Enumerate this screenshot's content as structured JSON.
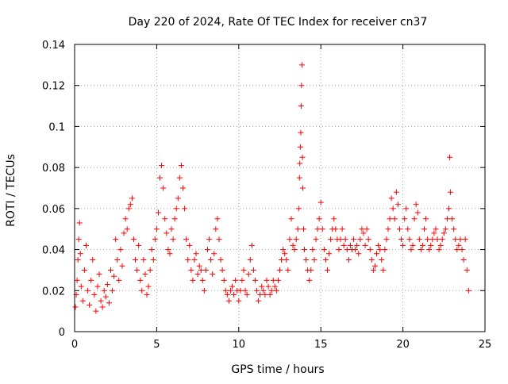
{
  "chart_data": {
    "type": "scatter",
    "title": "Day 220 of 2024, Rate Of TEC Index for receiver cn37",
    "xlabel": "GPS time / hours",
    "ylabel": "ROTI / TECUs",
    "xlim": [
      0,
      25
    ],
    "ylim": [
      0,
      0.14
    ],
    "xticks": [
      0,
      5,
      10,
      15,
      20,
      25
    ],
    "xtick_labels": [
      "0",
      "5",
      "10",
      "15",
      "20",
      "25"
    ],
    "yticks": [
      0,
      0.02,
      0.04,
      0.06,
      0.08,
      0.1,
      0.12,
      0.14
    ],
    "ytick_labels": [
      "0",
      "0.02",
      "0.04",
      "0.06",
      "0.08",
      "0.1",
      "0.12",
      "0.14"
    ],
    "grid": true,
    "legend": "none",
    "marker": "plus",
    "color": "#ff0000",
    "series": [
      {
        "values_note_free": true,
        "points": [
          [
            0.05,
            0.012
          ],
          [
            0.1,
            0.018
          ],
          [
            0.15,
            0.025
          ],
          [
            0.2,
            0.035
          ],
          [
            0.25,
            0.045
          ],
          [
            0.3,
            0.053
          ],
          [
            0.35,
            0.038
          ],
          [
            0.4,
            0.022
          ],
          [
            0.5,
            0.015
          ],
          [
            0.6,
            0.03
          ],
          [
            0.7,
            0.042
          ],
          [
            0.8,
            0.02
          ],
          [
            0.9,
            0.013
          ],
          [
            1.0,
            0.025
          ],
          [
            1.1,
            0.035
          ],
          [
            1.2,
            0.018
          ],
          [
            1.3,
            0.01
          ],
          [
            1.4,
            0.022
          ],
          [
            1.5,
            0.028
          ],
          [
            1.6,
            0.015
          ],
          [
            1.7,
            0.012
          ],
          [
            1.8,
            0.02
          ],
          [
            1.9,
            0.017
          ],
          [
            2.0,
            0.023
          ],
          [
            2.1,
            0.014
          ],
          [
            2.2,
            0.03
          ],
          [
            2.3,
            0.02
          ],
          [
            2.4,
            0.027
          ],
          [
            2.5,
            0.045
          ],
          [
            2.6,
            0.035
          ],
          [
            2.7,
            0.025
          ],
          [
            2.8,
            0.04
          ],
          [
            2.9,
            0.032
          ],
          [
            3.0,
            0.048
          ],
          [
            3.1,
            0.055
          ],
          [
            3.2,
            0.05
          ],
          [
            3.3,
            0.06
          ],
          [
            3.4,
            0.062
          ],
          [
            3.5,
            0.065
          ],
          [
            3.6,
            0.045
          ],
          [
            3.7,
            0.035
          ],
          [
            3.8,
            0.03
          ],
          [
            3.9,
            0.042
          ],
          [
            4.0,
            0.025
          ],
          [
            4.1,
            0.02
          ],
          [
            4.2,
            0.035
          ],
          [
            4.3,
            0.028
          ],
          [
            4.4,
            0.018
          ],
          [
            4.5,
            0.022
          ],
          [
            4.6,
            0.03
          ],
          [
            4.7,
            0.04
          ],
          [
            4.8,
            0.035
          ],
          [
            4.9,
            0.045
          ],
          [
            5.0,
            0.05
          ],
          [
            5.1,
            0.058
          ],
          [
            5.2,
            0.075
          ],
          [
            5.3,
            0.081
          ],
          [
            5.4,
            0.07
          ],
          [
            5.5,
            0.055
          ],
          [
            5.6,
            0.048
          ],
          [
            5.7,
            0.04
          ],
          [
            5.8,
            0.038
          ],
          [
            5.9,
            0.05
          ],
          [
            6.0,
            0.045
          ],
          [
            6.1,
            0.055
          ],
          [
            6.2,
            0.06
          ],
          [
            6.3,
            0.065
          ],
          [
            6.4,
            0.075
          ],
          [
            6.5,
            0.081
          ],
          [
            6.6,
            0.07
          ],
          [
            6.7,
            0.06
          ],
          [
            6.8,
            0.045
          ],
          [
            6.9,
            0.035
          ],
          [
            7.0,
            0.042
          ],
          [
            7.1,
            0.03
          ],
          [
            7.2,
            0.025
          ],
          [
            7.3,
            0.035
          ],
          [
            7.4,
            0.038
          ],
          [
            7.5,
            0.028
          ],
          [
            7.6,
            0.032
          ],
          [
            7.7,
            0.03
          ],
          [
            7.8,
            0.025
          ],
          [
            7.9,
            0.02
          ],
          [
            8.0,
            0.03
          ],
          [
            8.1,
            0.04
          ],
          [
            8.2,
            0.045
          ],
          [
            8.3,
            0.035
          ],
          [
            8.4,
            0.028
          ],
          [
            8.5,
            0.038
          ],
          [
            8.6,
            0.05
          ],
          [
            8.7,
            0.055
          ],
          [
            8.8,
            0.045
          ],
          [
            8.9,
            0.035
          ],
          [
            9.0,
            0.03
          ],
          [
            9.1,
            0.025
          ],
          [
            9.2,
            0.02
          ],
          [
            9.3,
            0.018
          ],
          [
            9.4,
            0.015
          ],
          [
            9.5,
            0.02
          ],
          [
            9.6,
            0.022
          ],
          [
            9.7,
            0.018
          ],
          [
            9.8,
            0.025
          ],
          [
            9.9,
            0.02
          ],
          [
            10.0,
            0.015
          ],
          [
            10.1,
            0.02
          ],
          [
            10.2,
            0.025
          ],
          [
            10.3,
            0.03
          ],
          [
            10.4,
            0.02
          ],
          [
            10.5,
            0.018
          ],
          [
            10.6,
            0.028
          ],
          [
            10.7,
            0.035
          ],
          [
            10.8,
            0.042
          ],
          [
            10.9,
            0.03
          ],
          [
            11.0,
            0.025
          ],
          [
            11.1,
            0.02
          ],
          [
            11.2,
            0.015
          ],
          [
            11.3,
            0.018
          ],
          [
            11.4,
            0.022
          ],
          [
            11.5,
            0.02
          ],
          [
            11.6,
            0.018
          ],
          [
            11.7,
            0.025
          ],
          [
            11.8,
            0.022
          ],
          [
            11.9,
            0.018
          ],
          [
            12.0,
            0.02
          ],
          [
            12.1,
            0.025
          ],
          [
            12.2,
            0.022
          ],
          [
            12.3,
            0.02
          ],
          [
            12.4,
            0.025
          ],
          [
            12.5,
            0.03
          ],
          [
            12.6,
            0.035
          ],
          [
            12.7,
            0.04
          ],
          [
            12.8,
            0.038
          ],
          [
            12.9,
            0.035
          ],
          [
            13.0,
            0.03
          ],
          [
            13.1,
            0.045
          ],
          [
            13.2,
            0.055
          ],
          [
            13.3,
            0.042
          ],
          [
            13.4,
            0.04
          ],
          [
            13.5,
            0.045
          ],
          [
            13.6,
            0.05
          ],
          [
            13.65,
            0.06
          ],
          [
            13.7,
            0.075
          ],
          [
            13.72,
            0.082
          ],
          [
            13.75,
            0.09
          ],
          [
            13.78,
            0.097
          ],
          [
            13.8,
            0.11
          ],
          [
            13.82,
            0.12
          ],
          [
            13.85,
            0.13
          ],
          [
            13.88,
            0.085
          ],
          [
            13.9,
            0.07
          ],
          [
            13.95,
            0.05
          ],
          [
            14.0,
            0.04
          ],
          [
            14.1,
            0.035
          ],
          [
            14.2,
            0.03
          ],
          [
            14.3,
            0.025
          ],
          [
            14.4,
            0.03
          ],
          [
            14.5,
            0.04
          ],
          [
            14.6,
            0.035
          ],
          [
            14.7,
            0.045
          ],
          [
            14.8,
            0.05
          ],
          [
            14.9,
            0.055
          ],
          [
            15.0,
            0.063
          ],
          [
            15.1,
            0.05
          ],
          [
            15.2,
            0.04
          ],
          [
            15.3,
            0.035
          ],
          [
            15.4,
            0.03
          ],
          [
            15.5,
            0.038
          ],
          [
            15.6,
            0.045
          ],
          [
            15.7,
            0.05
          ],
          [
            15.8,
            0.055
          ],
          [
            15.9,
            0.05
          ],
          [
            16.0,
            0.045
          ],
          [
            16.1,
            0.04
          ],
          [
            16.2,
            0.045
          ],
          [
            16.3,
            0.05
          ],
          [
            16.4,
            0.042
          ],
          [
            16.5,
            0.045
          ],
          [
            16.6,
            0.04
          ],
          [
            16.7,
            0.035
          ],
          [
            16.8,
            0.042
          ],
          [
            16.9,
            0.04
          ],
          [
            17.0,
            0.045
          ],
          [
            17.1,
            0.04
          ],
          [
            17.2,
            0.042
          ],
          [
            17.3,
            0.038
          ],
          [
            17.4,
            0.045
          ],
          [
            17.5,
            0.05
          ],
          [
            17.6,
            0.048
          ],
          [
            17.7,
            0.042
          ],
          [
            17.8,
            0.05
          ],
          [
            17.9,
            0.045
          ],
          [
            18.0,
            0.04
          ],
          [
            18.1,
            0.035
          ],
          [
            18.2,
            0.03
          ],
          [
            18.3,
            0.032
          ],
          [
            18.4,
            0.038
          ],
          [
            18.5,
            0.042
          ],
          [
            18.6,
            0.04
          ],
          [
            18.7,
            0.035
          ],
          [
            18.8,
            0.03
          ],
          [
            18.9,
            0.04
          ],
          [
            19.0,
            0.045
          ],
          [
            19.1,
            0.05
          ],
          [
            19.2,
            0.055
          ],
          [
            19.3,
            0.065
          ],
          [
            19.4,
            0.06
          ],
          [
            19.5,
            0.055
          ],
          [
            19.6,
            0.068
          ],
          [
            19.7,
            0.062
          ],
          [
            19.8,
            0.05
          ],
          [
            19.9,
            0.045
          ],
          [
            20.0,
            0.042
          ],
          [
            20.1,
            0.055
          ],
          [
            20.2,
            0.06
          ],
          [
            20.3,
            0.05
          ],
          [
            20.4,
            0.045
          ],
          [
            20.5,
            0.04
          ],
          [
            20.6,
            0.042
          ],
          [
            20.7,
            0.055
          ],
          [
            20.8,
            0.062
          ],
          [
            20.9,
            0.058
          ],
          [
            21.0,
            0.045
          ],
          [
            21.1,
            0.04
          ],
          [
            21.2,
            0.042
          ],
          [
            21.3,
            0.05
          ],
          [
            21.4,
            0.055
          ],
          [
            21.5,
            0.045
          ],
          [
            21.6,
            0.04
          ],
          [
            21.7,
            0.042
          ],
          [
            21.8,
            0.045
          ],
          [
            21.9,
            0.048
          ],
          [
            22.0,
            0.05
          ],
          [
            22.1,
            0.045
          ],
          [
            22.2,
            0.04
          ],
          [
            22.3,
            0.042
          ],
          [
            22.4,
            0.045
          ],
          [
            22.5,
            0.048
          ],
          [
            22.6,
            0.05
          ],
          [
            22.7,
            0.055
          ],
          [
            22.8,
            0.06
          ],
          [
            22.85,
            0.085
          ],
          [
            22.9,
            0.068
          ],
          [
            23.0,
            0.055
          ],
          [
            23.1,
            0.05
          ],
          [
            23.2,
            0.045
          ],
          [
            23.3,
            0.04
          ],
          [
            23.4,
            0.042
          ],
          [
            23.5,
            0.045
          ],
          [
            23.6,
            0.04
          ],
          [
            23.7,
            0.035
          ],
          [
            23.8,
            0.045
          ],
          [
            23.9,
            0.03
          ],
          [
            24.0,
            0.02
          ]
        ]
      }
    ]
  }
}
